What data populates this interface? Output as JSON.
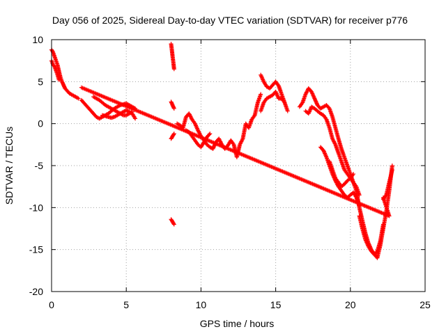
{
  "chart_data": {
    "type": "scatter",
    "title": "Day 056 of 2025, Sidereal Day-to-day VTEC variation (SDTVAR) for receiver p776",
    "xlabel": "GPS time / hours",
    "ylabel": "SDTVAR / TECUs",
    "xlim": [
      0,
      25
    ],
    "ylim": [
      -20,
      10
    ],
    "xticks": [
      0,
      5,
      10,
      15,
      20,
      25
    ],
    "yticks": [
      -20,
      -15,
      -10,
      -5,
      0,
      5,
      10
    ],
    "xtick_labels": [
      "0",
      "5",
      "10",
      "15",
      "20",
      "25"
    ],
    "ytick_labels": [
      "-20",
      "-15",
      "-10",
      "-5",
      "0",
      "5",
      "10"
    ],
    "grid": true,
    "marker": "+",
    "color": "#ff0000",
    "series": [
      {
        "name": "track-a",
        "x": [
          0.0,
          0.1,
          0.2,
          0.3,
          0.4,
          0.5,
          0.6,
          0.7,
          0.8,
          0.9,
          1.0,
          1.2,
          1.4,
          1.6,
          1.8
        ],
        "y": [
          8.8,
          8.5,
          8.0,
          7.5,
          7.0,
          6.2,
          5.5,
          5.0,
          4.6,
          4.2,
          4.0,
          3.6,
          3.4,
          3.2,
          3.0
        ]
      },
      {
        "name": "track-a2",
        "x": [
          0.0,
          0.1,
          0.2,
          0.3,
          0.4,
          0.5
        ],
        "y": [
          7.5,
          7.0,
          6.8,
          6.3,
          5.8,
          5.2
        ]
      },
      {
        "name": "track-b",
        "x": [
          2.0,
          2.2,
          2.4,
          2.6,
          2.8,
          3.0,
          3.2,
          3.4,
          3.6,
          3.8,
          4.0,
          4.2,
          4.4,
          4.6,
          4.8,
          5.0,
          5.2,
          5.4,
          5.6
        ],
        "y": [
          2.8,
          2.4,
          2.0,
          1.6,
          1.2,
          0.8,
          0.6,
          0.8,
          1.0,
          1.2,
          1.5,
          1.8,
          2.0,
          2.2,
          2.3,
          2.4,
          2.2,
          2.0,
          1.8
        ]
      },
      {
        "name": "track-c",
        "x": [
          2.8,
          3.0,
          3.2,
          3.4,
          3.6,
          3.8,
          4.0,
          4.2,
          4.4,
          4.6,
          4.8,
          5.0,
          5.2,
          5.4
        ],
        "y": [
          3.2,
          3.0,
          2.8,
          2.5,
          2.2,
          2.0,
          1.8,
          1.6,
          1.4,
          1.2,
          1.0,
          1.0,
          1.2,
          1.4
        ]
      },
      {
        "name": "track-d",
        "x": [
          3.4,
          3.6,
          3.8,
          4.0,
          4.2,
          4.4,
          4.6,
          4.8,
          5.0,
          5.2,
          5.4,
          5.6
        ],
        "y": [
          1.0,
          0.9,
          0.8,
          0.7,
          0.8,
          1.0,
          1.2,
          1.4,
          1.6,
          1.4,
          1.2,
          0.6
        ]
      },
      {
        "name": "track-e",
        "x": [
          8.0,
          8.05,
          8.1,
          8.15,
          8.2
        ],
        "y": [
          9.5,
          8.8,
          8.0,
          7.3,
          6.5
        ]
      },
      {
        "name": "track-f",
        "x": [
          8.0,
          8.1,
          8.2
        ],
        "y": [
          2.6,
          2.2,
          1.8
        ]
      },
      {
        "name": "track-g",
        "x": [
          8.0,
          8.1,
          8.2
        ],
        "y": [
          -1.8,
          -1.5,
          -1.2
        ]
      },
      {
        "name": "track-h",
        "x": [
          8.0,
          8.1,
          8.2
        ],
        "y": [
          -11.4,
          -11.7,
          -12.0
        ]
      },
      {
        "name": "track-i",
        "x": [
          8.4,
          8.6,
          8.8,
          9.0,
          9.2,
          9.4,
          9.6,
          9.8,
          10.0,
          10.2,
          10.4,
          10.6,
          10.8,
          11.0,
          11.2,
          11.4,
          11.6,
          11.8,
          12.0,
          12.2,
          12.4,
          12.6,
          12.8,
          13.0,
          13.2,
          13.4,
          13.6,
          13.8,
          14.0
        ],
        "y": [
          0.0,
          -0.2,
          -0.5,
          0.8,
          1.2,
          0.5,
          0.0,
          -0.8,
          -1.5,
          -2.0,
          -2.5,
          -2.8,
          -3.0,
          -2.2,
          -1.8,
          -2.5,
          -3.0,
          -2.6,
          -2.0,
          -2.5,
          -4.0,
          -2.5,
          -1.8,
          0.0,
          -0.5,
          0.5,
          1.0,
          2.5,
          3.5
        ]
      },
      {
        "name": "track-j",
        "x": [
          9.0,
          9.2,
          9.4,
          9.6,
          9.8,
          10.0,
          10.2,
          10.4,
          10.6
        ],
        "y": [
          -0.8,
          -1.0,
          -1.5,
          -2.0,
          -2.5,
          -2.8,
          -2.2,
          -1.6,
          -1.2
        ]
      },
      {
        "name": "track-k",
        "x": [
          14.0,
          14.2,
          14.4,
          14.6,
          14.8,
          15.0,
          15.2,
          15.4,
          15.6
        ],
        "y": [
          5.8,
          5.0,
          4.4,
          4.2,
          4.6,
          5.0,
          4.5,
          3.5,
          2.5
        ]
      },
      {
        "name": "track-l",
        "x": [
          14.0,
          14.2,
          14.4,
          14.6,
          14.8,
          15.0,
          15.2,
          15.4,
          15.6,
          15.8
        ],
        "y": [
          1.5,
          2.5,
          3.0,
          3.2,
          3.4,
          3.8,
          3.0,
          3.0,
          2.5,
          1.5
        ]
      },
      {
        "name": "track-m",
        "x": [
          16.6,
          16.8,
          17.0,
          17.2,
          17.4,
          17.6,
          17.8,
          18.0,
          18.2,
          18.4,
          18.6,
          18.8,
          19.0,
          19.2,
          19.4,
          19.6,
          19.8,
          20.0,
          20.2,
          20.4
        ],
        "y": [
          2.0,
          2.5,
          3.5,
          4.2,
          3.8,
          3.0,
          2.2,
          1.8,
          2.0,
          2.2,
          1.8,
          0.8,
          -0.5,
          -1.8,
          -3.0,
          -4.0,
          -5.0,
          -6.0,
          -7.0,
          -8.0
        ]
      },
      {
        "name": "track-n",
        "x": [
          17.0,
          17.2,
          17.4,
          17.6,
          17.8,
          18.0,
          18.2,
          18.4,
          18.6,
          18.8,
          19.0,
          19.2,
          19.4,
          19.6,
          19.8,
          20.0,
          20.2,
          20.4,
          20.6
        ],
        "y": [
          1.5,
          1.2,
          2.0,
          1.8,
          1.5,
          1.2,
          1.0,
          0.5,
          -0.5,
          -1.8,
          -2.5,
          -3.5,
          -4.5,
          -5.5,
          -6.0,
          -6.5,
          -7.0,
          -7.5,
          -8.5
        ]
      },
      {
        "name": "track-o",
        "x": [
          18.0,
          18.2,
          18.4,
          18.6,
          18.8,
          19.0,
          19.2,
          19.4,
          19.6,
          19.8,
          20.0,
          20.2,
          20.4,
          20.6
        ],
        "y": [
          -2.8,
          -3.2,
          -4.0,
          -5.0,
          -6.0,
          -6.8,
          -7.5,
          -8.0,
          -8.5,
          -8.8,
          -8.5,
          -8.2,
          -8.8,
          -9.8
        ]
      },
      {
        "name": "track-p",
        "x": [
          18.6,
          18.8,
          19.0,
          19.2,
          19.4,
          19.6,
          19.8,
          20.0,
          20.2
        ],
        "y": [
          -4.5,
          -5.5,
          -6.5,
          -7.0,
          -7.5,
          -7.2,
          -6.8,
          -6.5,
          -6.0
        ]
      },
      {
        "name": "track-q",
        "x": [
          20.4,
          20.6,
          20.8,
          21.0,
          21.2,
          21.4,
          21.6,
          21.8,
          22.0,
          22.2,
          22.4,
          22.6,
          22.8
        ],
        "y": [
          -8.0,
          -10.0,
          -11.5,
          -13.0,
          -14.2,
          -15.0,
          -15.5,
          -16.0,
          -14.5,
          -12.5,
          -10.5,
          -8.0,
          -5.0
        ]
      },
      {
        "name": "track-r",
        "x": [
          20.6,
          20.8,
          21.0,
          21.2,
          21.4,
          21.6,
          21.8,
          22.0,
          22.2
        ],
        "y": [
          -11.0,
          -12.5,
          -13.8,
          -14.6,
          -15.2,
          -15.6,
          -15.2,
          -14.0,
          -12.0
        ]
      },
      {
        "name": "track-s",
        "x": [
          22.2,
          22.4,
          22.6,
          22.8
        ],
        "y": [
          -9.0,
          -8.5,
          -7.0,
          -5.5
        ]
      },
      {
        "name": "stray",
        "x": [
          2.0,
          22.6,
          22.2
        ],
        "y": [
          4.3,
          -11.0,
          -8.8
        ]
      }
    ]
  }
}
